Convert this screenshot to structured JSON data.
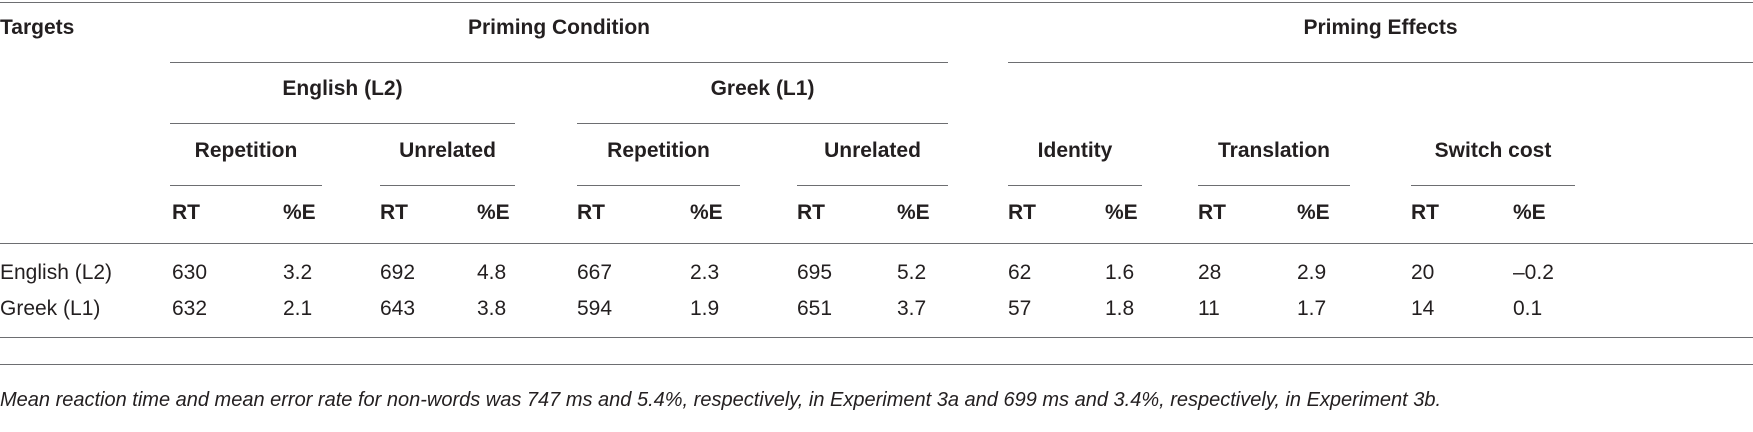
{
  "header": {
    "targets": "Targets",
    "groups": [
      "Priming Condition",
      "Priming Effects"
    ],
    "subgroups": [
      "English (L2)",
      "Greek (L1)"
    ],
    "conditions": [
      "Repetition",
      "Unrelated",
      "Repetition",
      "Unrelated",
      "Identity",
      "Translation",
      "Switch cost"
    ],
    "columns": [
      "RT",
      "%E",
      "RT",
      "%E",
      "RT",
      "%E",
      "RT",
      "%E",
      "RT",
      "%E",
      "RT",
      "%E",
      "RT",
      "%E"
    ]
  },
  "rows": [
    [
      "English (L2)",
      "630",
      "3.2",
      "692",
      "4.8",
      "667",
      "2.3",
      "695",
      "5.2",
      "62",
      "1.6",
      "28",
      "2.9",
      "20",
      "–0.2"
    ],
    [
      "Greek (L1)",
      "632",
      "2.1",
      "643",
      "3.8",
      "594",
      "1.9",
      "651",
      "3.7",
      "57",
      "1.8",
      "11",
      "1.7",
      "14",
      "0.1"
    ]
  ],
  "note": "Mean reaction time and mean error rate for non-words was 747 ms and 5.4%, respectively, in Experiment 3a and 699 ms and 3.4%, respectively, in Experiment 3b."
}
